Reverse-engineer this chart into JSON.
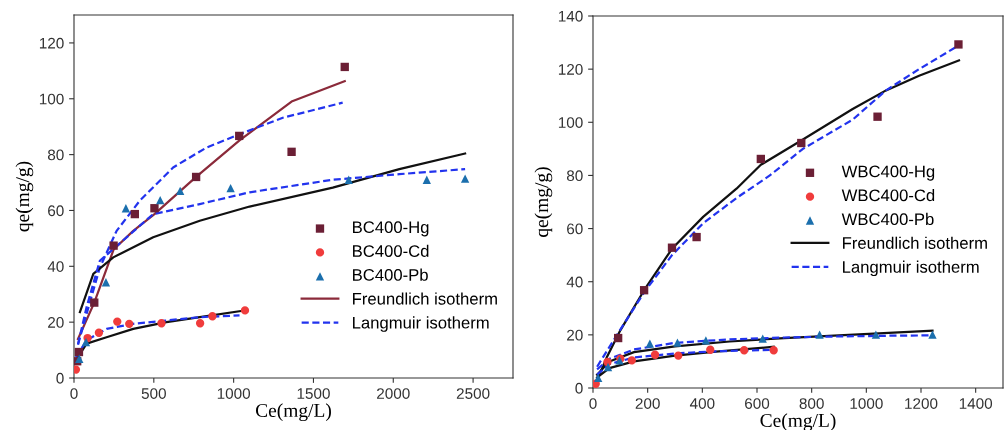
{
  "chart_data": [
    {
      "type": "scatter",
      "xlabel": "Ce(mg/L)",
      "ylabel": "qe(mg/g)",
      "xlim": [
        0,
        2750
      ],
      "ylim": [
        0,
        130
      ],
      "xticks": [
        0,
        500,
        1000,
        1500,
        2000,
        2500
      ],
      "yticks": [
        0,
        20,
        40,
        60,
        80,
        100,
        120
      ],
      "grid": false,
      "legend": "center right",
      "series": [
        {
          "name": "BC400-Hg",
          "marker": "square",
          "color": "#6b1f35",
          "x": [
            20,
            31,
            127,
            248,
            381,
            504,
            765,
            1035,
            1363,
            1696
          ],
          "values": [
            6,
            9.3,
            27,
            47.4,
            58.7,
            60.8,
            72,
            86.7,
            81,
            111.4
          ]
        },
        {
          "name": "BC400-Cd",
          "marker": "circle",
          "color": "#f03c3c",
          "x": [
            12,
            85,
            156,
            271,
            346,
            548,
            790,
            867,
            1071
          ],
          "values": [
            3,
            14.3,
            16.2,
            20.2,
            19.4,
            19.6,
            19.6,
            22.1,
            24.2
          ]
        },
        {
          "name": "BC400-Pb",
          "marker": "triangle",
          "color": "#1b6fad",
          "x": [
            33,
            75,
            200,
            325,
            540,
            665,
            981,
            1721,
            2210,
            2450
          ],
          "values": [
            6.9,
            12.9,
            34.3,
            60.8,
            63.7,
            67,
            68,
            71,
            71,
            71.4
          ]
        },
        {
          "name": "Freundlich isotherm",
          "type": "line",
          "line_style": "solid",
          "color": "#8b2a3a",
          "x": [
            25,
            127,
            248,
            371,
            504,
            765,
            1035,
            1363,
            1696
          ],
          "values": [
            14,
            27,
            46,
            52.7,
            58.7,
            72,
            85,
            99,
            106.3
          ]
        },
        {
          "name": "Langmuir isotherm",
          "type": "line",
          "line_style": "dashed",
          "color": "#2233ee",
          "x": [
            25,
            79,
            162,
            267,
            412,
            621,
            829,
            1037,
            1308,
            1683
          ],
          "values": [
            12,
            23,
            39.6,
            52.7,
            63.5,
            75.4,
            82.5,
            87.3,
            93.2,
            98.6
          ]
        },
        {
          "type": "line",
          "line_style": "solid",
          "color": "#111111",
          "x": [
            37,
            121,
            246,
            496,
            788,
            1100,
            1621,
            2038,
            2450
          ],
          "values": [
            23.6,
            37.3,
            43.2,
            50.4,
            56.3,
            61.4,
            68.2,
            74.8,
            80.4
          ]
        },
        {
          "type": "line",
          "line_style": "dashed",
          "color": "#2233ee",
          "x": [
            25,
            79,
            162,
            496,
            788,
            1100,
            1621,
            2038,
            2450
          ],
          "values": [
            12,
            25.4,
            42,
            58.7,
            62.3,
            66.5,
            71,
            73,
            74.8
          ]
        },
        {
          "type": "line",
          "line_style": "solid",
          "color": "#111111",
          "x": [
            12,
            79,
            204,
            371,
            579,
            788,
            1071
          ],
          "values": [
            6.3,
            12.3,
            14.6,
            17.6,
            20,
            21.8,
            24.2
          ]
        },
        {
          "type": "line",
          "line_style": "dashed",
          "color": "#2233ee",
          "x": [
            12,
            79,
            204,
            371,
            579,
            788,
            1037
          ],
          "values": [
            7.5,
            13.5,
            17.6,
            19.4,
            20.6,
            21.8,
            22.4
          ]
        }
      ]
    },
    {
      "type": "scatter",
      "xlabel": "Ce(mg/L)",
      "ylabel": "qe(mg/g)",
      "xlim": [
        0,
        1500
      ],
      "ylim": [
        0,
        140
      ],
      "xticks": [
        0,
        200,
        400,
        600,
        800,
        1000,
        1200,
        1400
      ],
      "yticks": [
        0,
        20,
        40,
        60,
        80,
        100,
        120,
        140
      ],
      "grid": false,
      "legend": "center right",
      "series": [
        {
          "name": "WBC400-Hg",
          "marker": "square",
          "color": "#6b1f35",
          "x": [
            92,
            187,
            289,
            379,
            614,
            762,
            1041,
            1337
          ],
          "values": [
            18.8,
            36.8,
            52.8,
            56.8,
            86.2,
            92.2,
            102.1,
            129.3
          ]
        },
        {
          "name": "WBC400-Cd",
          "marker": "circle",
          "color": "#f03c3c",
          "x": [
            10,
            53,
            100,
            142,
            227,
            312,
            429,
            553,
            661
          ],
          "values": [
            1.6,
            9.8,
            11,
            10.4,
            12.5,
            12.2,
            14.4,
            14.2,
            14.2
          ]
        },
        {
          "name": "WBC400-Pb",
          "marker": "triangle",
          "color": "#1b6fad",
          "x": [
            19,
            55,
            97,
            208,
            309,
            413,
            621,
            829,
            1035,
            1242
          ],
          "values": [
            3.8,
            7.9,
            10.4,
            16.7,
            17.1,
            17.9,
            18.6,
            20.1,
            20.1,
            20.1
          ]
        },
        {
          "name": "Freundlich isotherm",
          "type": "line",
          "line_style": "solid",
          "color": "#111111",
          "x": [
            15,
            51,
            100,
            187,
            289,
            403,
            525,
            614,
            768,
            950,
            1072,
            1193,
            1339
          ],
          "values": [
            2.9,
            11.7,
            21.7,
            36.8,
            52.4,
            64.4,
            75,
            84,
            93.5,
            105,
            112,
            117.5,
            123.3
          ]
        },
        {
          "name": "Langmuir isotherm",
          "type": "line",
          "line_style": "dashed",
          "color": "#2233ee",
          "x": [
            15,
            100,
            187,
            289,
            403,
            525,
            647,
            768,
            950,
            1072,
            1193,
            1339
          ],
          "values": [
            8,
            22,
            36,
            50,
            62,
            71.5,
            80,
            90,
            101,
            112,
            120,
            129
          ]
        },
        {
          "type": "line",
          "line_style": "solid",
          "color": "#111111",
          "x": [
            15,
            60,
            150,
            300,
            500,
            700,
            900,
            1100,
            1242
          ],
          "values": [
            5,
            10,
            13.5,
            15.7,
            17.5,
            18.8,
            19.8,
            20.8,
            21.6
          ]
        },
        {
          "type": "line",
          "line_style": "dashed",
          "color": "#2233ee",
          "x": [
            15,
            60,
            150,
            300,
            500,
            700,
            900,
            1100,
            1242
          ],
          "values": [
            7,
            11,
            14.5,
            17,
            18.3,
            19,
            19.4,
            19.7,
            19.8
          ]
        },
        {
          "type": "line",
          "line_style": "solid",
          "color": "#111111",
          "x": [
            15,
            60,
            150,
            300,
            450,
            661
          ],
          "values": [
            4,
            7.5,
            10,
            12.2,
            13.7,
            15.5
          ]
        },
        {
          "type": "line",
          "line_style": "dashed",
          "color": "#2233ee",
          "x": [
            15,
            60,
            150,
            300,
            450,
            661
          ],
          "values": [
            5,
            9,
            11.5,
            13,
            13.8,
            14.4
          ]
        }
      ]
    }
  ]
}
